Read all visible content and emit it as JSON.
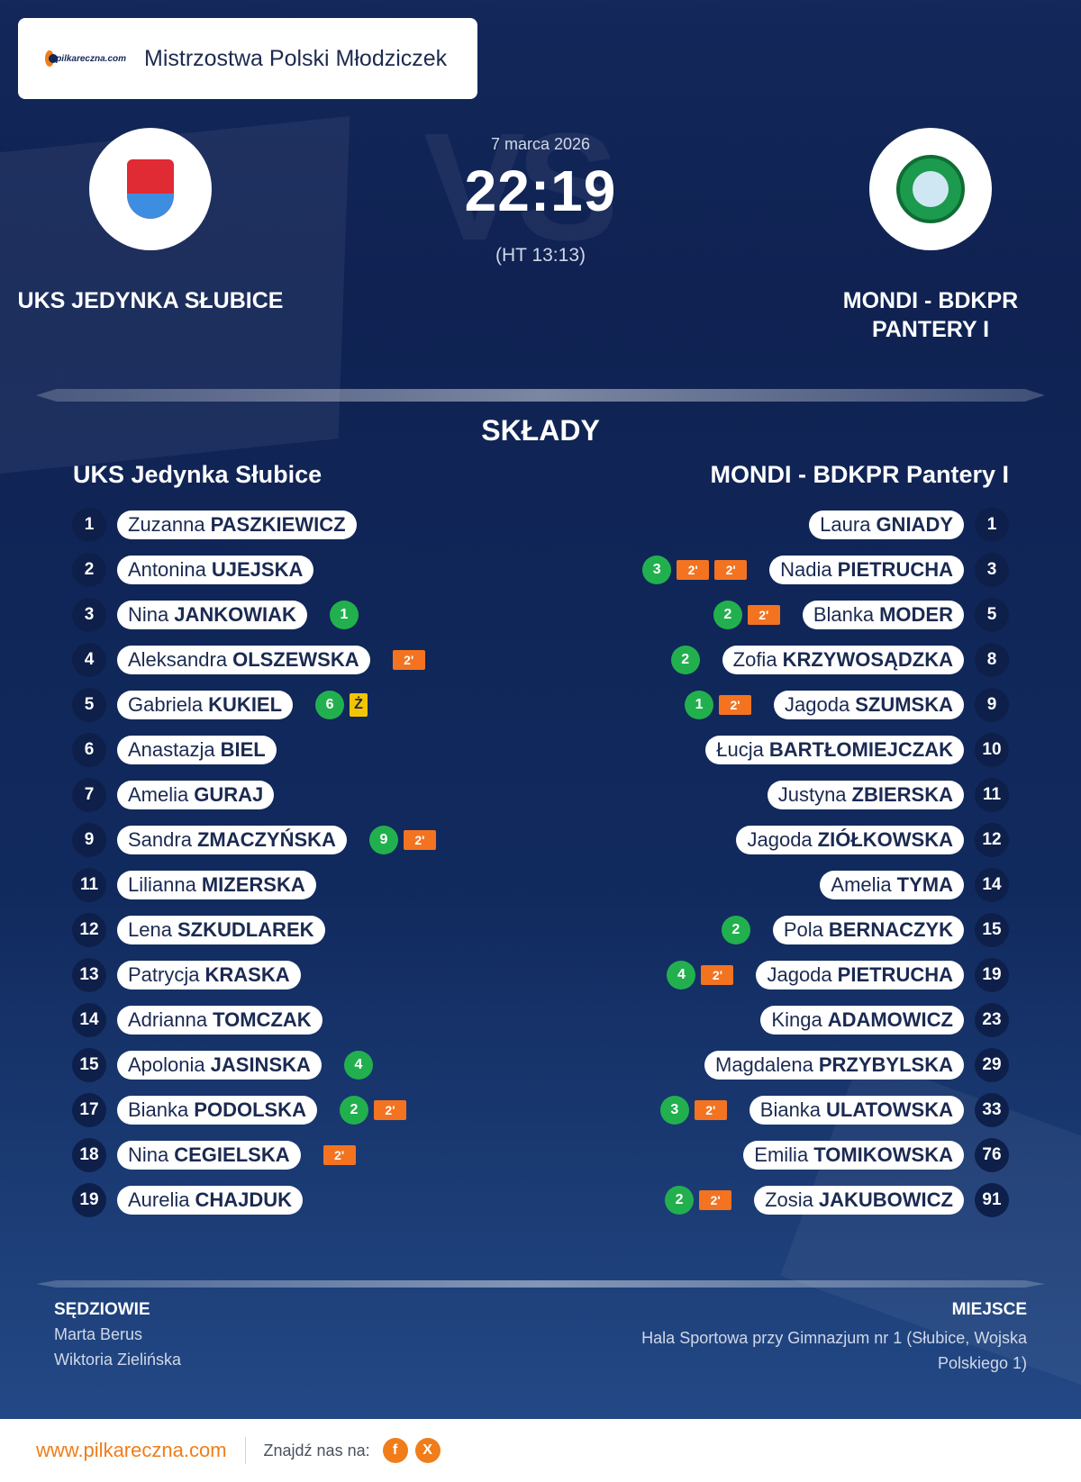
{
  "header": {
    "logo_text": "pilkareczna.com",
    "competition": "Mistrzostwa Polski Młodziczek"
  },
  "match": {
    "date": "7 marca 2026",
    "score": "22:19",
    "halftime": "(HT 13:13)",
    "vs_text": "VS",
    "home_name": "UKS JEDYNKA SŁUBICE",
    "away_name": "MONDI - BDKPR PANTERY I",
    "home_logo_icon": "uks-jedynka-crest-icon",
    "away_logo_icon": "mondi-bdkpr-crest-icon"
  },
  "squads": {
    "title": "SKŁADY",
    "home_title": "UKS Jedynka Słubice",
    "away_title": "MONDI - BDKPR Pantery I",
    "home": [
      {
        "no": "1",
        "first": "Zuzanna",
        "last": "PASZKIEWICZ",
        "stats": []
      },
      {
        "no": "2",
        "first": "Antonina",
        "last": "UJEJSKA",
        "stats": []
      },
      {
        "no": "3",
        "first": "Nina",
        "last": "JANKOWIAK",
        "stats": [
          {
            "t": "goal",
            "v": "1"
          }
        ]
      },
      {
        "no": "4",
        "first": "Aleksandra",
        "last": "OLSZEWSKA",
        "stats": [
          {
            "t": "susp",
            "v": "2'"
          }
        ]
      },
      {
        "no": "5",
        "first": "Gabriela",
        "last": "KUKIEL",
        "stats": [
          {
            "t": "goal",
            "v": "6"
          },
          {
            "t": "yellow",
            "v": "Ż"
          }
        ]
      },
      {
        "no": "6",
        "first": "Anastazja",
        "last": "BIEL",
        "stats": []
      },
      {
        "no": "7",
        "first": "Amelia",
        "last": "GURAJ",
        "stats": []
      },
      {
        "no": "9",
        "first": "Sandra",
        "last": "ZMACZYŃSKA",
        "stats": [
          {
            "t": "goal",
            "v": "9"
          },
          {
            "t": "susp",
            "v": "2'"
          }
        ]
      },
      {
        "no": "11",
        "first": "Lilianna",
        "last": "MIZERSKA",
        "stats": []
      },
      {
        "no": "12",
        "first": "Lena",
        "last": "SZKUDLAREK",
        "stats": []
      },
      {
        "no": "13",
        "first": "Patrycja",
        "last": "KRASKA",
        "stats": []
      },
      {
        "no": "14",
        "first": "Adrianna",
        "last": "TOMCZAK",
        "stats": []
      },
      {
        "no": "15",
        "first": "Apolonia",
        "last": "JASINSKA",
        "stats": [
          {
            "t": "goal",
            "v": "4"
          }
        ]
      },
      {
        "no": "17",
        "first": "Bianka",
        "last": "PODOLSKA",
        "stats": [
          {
            "t": "goal",
            "v": "2"
          },
          {
            "t": "susp",
            "v": "2'"
          }
        ]
      },
      {
        "no": "18",
        "first": "Nina",
        "last": "CEGIELSKA",
        "stats": [
          {
            "t": "susp",
            "v": "2'"
          }
        ]
      },
      {
        "no": "19",
        "first": "Aurelia",
        "last": "CHAJDUK",
        "stats": []
      }
    ],
    "away": [
      {
        "no": "1",
        "first": "Laura",
        "last": "GNIADY",
        "stats": []
      },
      {
        "no": "3",
        "first": "Nadia",
        "last": "PIETRUCHA",
        "stats": [
          {
            "t": "goal",
            "v": "3"
          },
          {
            "t": "susp",
            "v": "2'"
          },
          {
            "t": "susp",
            "v": "2'"
          }
        ]
      },
      {
        "no": "5",
        "first": "Blanka",
        "last": "MODER",
        "stats": [
          {
            "t": "goal",
            "v": "2"
          },
          {
            "t": "susp",
            "v": "2'"
          }
        ]
      },
      {
        "no": "8",
        "first": "Zofia",
        "last": "KRZYWOSĄDZKA",
        "stats": [
          {
            "t": "goal",
            "v": "2"
          }
        ]
      },
      {
        "no": "9",
        "first": "Jagoda",
        "last": "SZUMSKA",
        "stats": [
          {
            "t": "goal",
            "v": "1"
          },
          {
            "t": "susp",
            "v": "2'"
          }
        ]
      },
      {
        "no": "10",
        "first": "Łucja",
        "last": "BARTŁOMIEJCZAK",
        "stats": []
      },
      {
        "no": "11",
        "first": "Justyna",
        "last": "ZBIERSKA",
        "stats": []
      },
      {
        "no": "12",
        "first": "Jagoda",
        "last": "ZIÓŁKOWSKA",
        "stats": []
      },
      {
        "no": "14",
        "first": "Amelia",
        "last": "TYMA",
        "stats": []
      },
      {
        "no": "15",
        "first": "Pola",
        "last": "BERNACZYK",
        "stats": [
          {
            "t": "goal",
            "v": "2"
          }
        ]
      },
      {
        "no": "19",
        "first": "Jagoda",
        "last": "PIETRUCHA",
        "stats": [
          {
            "t": "goal",
            "v": "4"
          },
          {
            "t": "susp",
            "v": "2'"
          }
        ]
      },
      {
        "no": "23",
        "first": "Kinga",
        "last": "ADAMOWICZ",
        "stats": []
      },
      {
        "no": "29",
        "first": "Magdalena",
        "last": "PRZYBYLSKA",
        "stats": []
      },
      {
        "no": "33",
        "first": "Bianka",
        "last": "ULATOWSKA",
        "stats": [
          {
            "t": "goal",
            "v": "3"
          },
          {
            "t": "susp",
            "v": "2'"
          }
        ]
      },
      {
        "no": "76",
        "first": "Emilia",
        "last": "TOMIKOWSKA",
        "stats": []
      },
      {
        "no": "91",
        "first": "Zosia",
        "last": "JAKUBOWICZ",
        "stats": [
          {
            "t": "goal",
            "v": "2"
          },
          {
            "t": "susp",
            "v": "2'"
          }
        ]
      }
    ]
  },
  "officials": {
    "referees_label": "SĘDZIOWIE",
    "referees": [
      "Marta Berus",
      "Wiktoria Zielińska"
    ],
    "venue_label": "MIEJSCE",
    "venue": "Hala Sportowa przy Gimnazjum nr 1 (Słubice, Wojska Polskiego 1)"
  },
  "footer": {
    "site": "www.pilkareczna.com",
    "find_us": "Znajdź nas na:",
    "facebook": "f",
    "x": "X"
  },
  "colors": {
    "accent": "#f07d1a",
    "goal": "#22b04e",
    "suspension": "#f37321",
    "yellow_card": "#f5c400",
    "navy": "#13275a"
  }
}
